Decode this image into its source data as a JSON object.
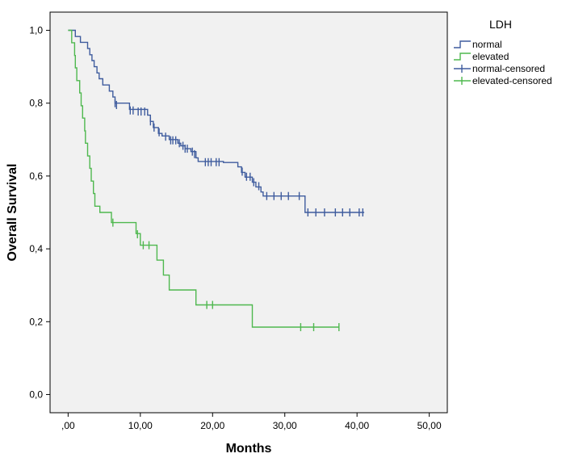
{
  "chart_data": {
    "type": "line",
    "subtype": "kaplan-meier",
    "title": "",
    "xlabel": "Months",
    "ylabel": "Overall Survival",
    "xlim": [
      -2.5,
      52.5
    ],
    "ylim": [
      -0.05,
      1.05
    ],
    "xticks": [
      0,
      10,
      20,
      30,
      40,
      50
    ],
    "xtick_labels": [
      ",00",
      "10,00",
      "20,00",
      "30,00",
      "40,00",
      "50,00"
    ],
    "yticks": [
      0,
      0.2,
      0.4,
      0.6,
      0.8,
      1.0
    ],
    "ytick_labels": [
      "0,0",
      "0,2",
      "0,4",
      "0,6",
      "0,8",
      "1,0"
    ],
    "legend": {
      "title": "LDH",
      "position": "top-right outside",
      "entries": [
        {
          "label": "normal",
          "kind": "step",
          "series": 0
        },
        {
          "label": "elevated",
          "kind": "step",
          "series": 1
        },
        {
          "label": "normal-censored",
          "kind": "censor",
          "series": 0
        },
        {
          "label": "elevated-censored",
          "kind": "censor",
          "series": 1
        }
      ]
    },
    "series": [
      {
        "name": "normal",
        "color": "#3f5c9e",
        "steps": [
          [
            0,
            1.0
          ],
          [
            1.0,
            0.983
          ],
          [
            1.7,
            0.967
          ],
          [
            2.7,
            0.95
          ],
          [
            3.0,
            0.933
          ],
          [
            3.3,
            0.917
          ],
          [
            3.6,
            0.9
          ],
          [
            4.0,
            0.883
          ],
          [
            4.3,
            0.867
          ],
          [
            4.8,
            0.85
          ],
          [
            5.7,
            0.833
          ],
          [
            6.2,
            0.817
          ],
          [
            6.5,
            0.8
          ],
          [
            8.5,
            0.783
          ],
          [
            9.0,
            0.783
          ],
          [
            11.0,
            0.767
          ],
          [
            11.4,
            0.75
          ],
          [
            11.8,
            0.733
          ],
          [
            12.5,
            0.717
          ],
          [
            13.0,
            0.71
          ],
          [
            14.0,
            0.7
          ],
          [
            15.2,
            0.69
          ],
          [
            15.6,
            0.683
          ],
          [
            16.2,
            0.675
          ],
          [
            17.0,
            0.667
          ],
          [
            17.7,
            0.65
          ],
          [
            18.0,
            0.64
          ],
          [
            20.0,
            0.64
          ],
          [
            21.5,
            0.637
          ],
          [
            23.5,
            0.625
          ],
          [
            24.0,
            0.61
          ],
          [
            24.5,
            0.597
          ],
          [
            25.5,
            0.583
          ],
          [
            26.0,
            0.57
          ],
          [
            26.7,
            0.556
          ],
          [
            27.0,
            0.545
          ],
          [
            32.0,
            0.545
          ],
          [
            32.8,
            0.5
          ],
          [
            41.0,
            0.5
          ]
        ],
        "censored": [
          [
            6.5,
            0.8
          ],
          [
            6.7,
            0.795
          ],
          [
            8.6,
            0.78
          ],
          [
            9.0,
            0.78
          ],
          [
            9.7,
            0.777
          ],
          [
            10.1,
            0.777
          ],
          [
            10.6,
            0.777
          ],
          [
            11.4,
            0.75
          ],
          [
            11.9,
            0.733
          ],
          [
            12.6,
            0.72
          ],
          [
            13.5,
            0.708
          ],
          [
            14.2,
            0.698
          ],
          [
            14.5,
            0.698
          ],
          [
            14.9,
            0.698
          ],
          [
            15.4,
            0.69
          ],
          [
            15.9,
            0.683
          ],
          [
            16.2,
            0.675
          ],
          [
            16.5,
            0.675
          ],
          [
            17.2,
            0.667
          ],
          [
            17.5,
            0.66
          ],
          [
            19.0,
            0.638
          ],
          [
            19.4,
            0.638
          ],
          [
            19.8,
            0.638
          ],
          [
            20.5,
            0.638
          ],
          [
            20.9,
            0.638
          ],
          [
            24.1,
            0.612
          ],
          [
            24.7,
            0.598
          ],
          [
            25.2,
            0.598
          ],
          [
            25.7,
            0.583
          ],
          [
            26.4,
            0.572
          ],
          [
            27.5,
            0.545
          ],
          [
            28.5,
            0.545
          ],
          [
            29.5,
            0.545
          ],
          [
            30.5,
            0.545
          ],
          [
            32.0,
            0.545
          ],
          [
            33.2,
            0.5
          ],
          [
            34.3,
            0.5
          ],
          [
            35.5,
            0.5
          ],
          [
            37.0,
            0.5
          ],
          [
            38.0,
            0.5
          ],
          [
            39.0,
            0.5
          ],
          [
            40.3,
            0.5
          ],
          [
            40.8,
            0.5
          ]
        ]
      },
      {
        "name": "elevated",
        "color": "#4fb84f",
        "steps": [
          [
            0,
            1.0
          ],
          [
            0.5,
            0.966
          ],
          [
            0.9,
            0.931
          ],
          [
            1.0,
            0.897
          ],
          [
            1.2,
            0.862
          ],
          [
            1.6,
            0.828
          ],
          [
            1.8,
            0.793
          ],
          [
            2.0,
            0.759
          ],
          [
            2.3,
            0.724
          ],
          [
            2.4,
            0.69
          ],
          [
            2.7,
            0.655
          ],
          [
            3.0,
            0.621
          ],
          [
            3.2,
            0.586
          ],
          [
            3.5,
            0.552
          ],
          [
            3.7,
            0.517
          ],
          [
            4.4,
            0.5
          ],
          [
            5.5,
            0.5
          ],
          [
            6.0,
            0.472
          ],
          [
            9.0,
            0.472
          ],
          [
            9.4,
            0.442
          ],
          [
            10.0,
            0.41
          ],
          [
            11.8,
            0.41
          ],
          [
            12.3,
            0.369
          ],
          [
            13.2,
            0.328
          ],
          [
            14.0,
            0.287
          ],
          [
            17.5,
            0.287
          ],
          [
            17.7,
            0.246
          ],
          [
            25.3,
            0.246
          ],
          [
            25.5,
            0.185
          ],
          [
            37.5,
            0.185
          ]
        ],
        "censored": [
          [
            6.2,
            0.472
          ],
          [
            9.6,
            0.44
          ],
          [
            10.4,
            0.41
          ],
          [
            11.2,
            0.41
          ],
          [
            19.2,
            0.246
          ],
          [
            20.0,
            0.246
          ],
          [
            32.2,
            0.185
          ],
          [
            34.0,
            0.185
          ],
          [
            37.5,
            0.185
          ]
        ]
      }
    ]
  }
}
